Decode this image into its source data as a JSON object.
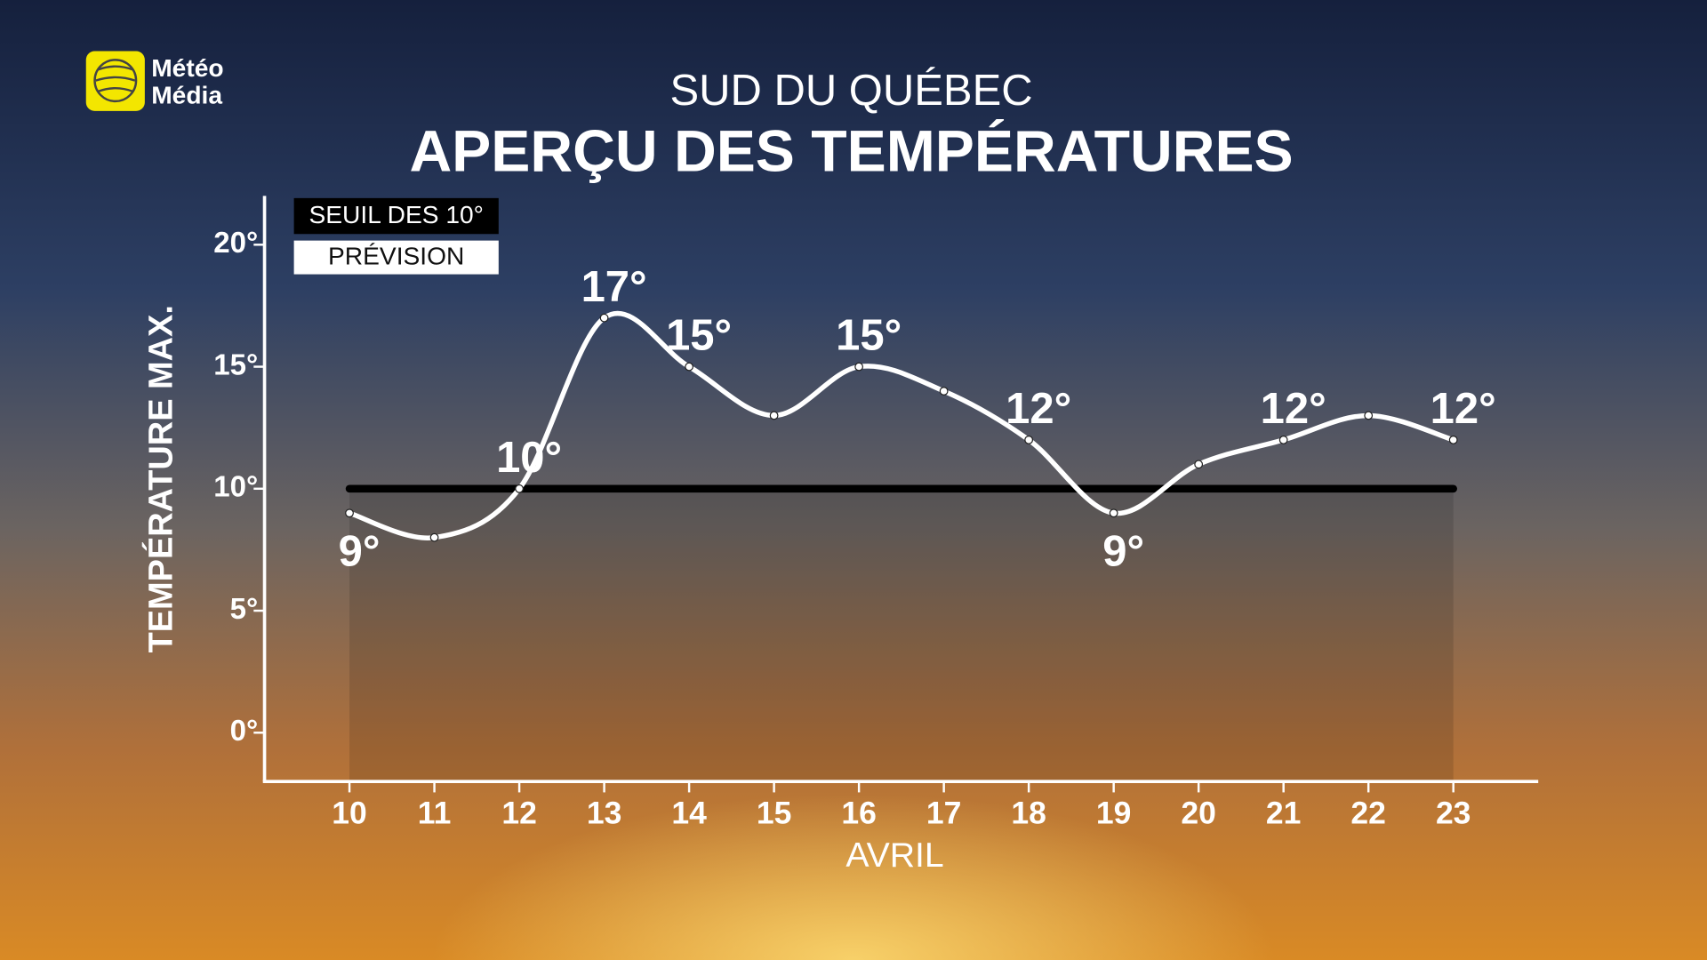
{
  "logo": {
    "line1": "Météo",
    "line2": "Média"
  },
  "chart_data": {
    "type": "line",
    "subtitle": "SUD DU QUÉBEC",
    "title": "APERÇU DES TEMPÉRATURES",
    "y_label": "TEMPÉRATURE MAX.",
    "x_label": "AVRIL",
    "x": [
      10,
      11,
      12,
      13,
      14,
      15,
      16,
      17,
      18,
      19,
      20,
      21,
      22,
      23
    ],
    "series": [
      {
        "name": "PRÉVISION",
        "color": "#ffffff",
        "values": [
          9,
          8,
          10,
          17,
          15,
          13,
          15,
          14,
          12,
          9,
          11,
          12,
          13,
          12
        ],
        "value_labels": [
          "9°",
          null,
          "10°",
          "17°",
          "15°",
          null,
          "15°",
          null,
          "12°",
          "9°",
          null,
          "12°",
          null,
          "12°"
        ]
      }
    ],
    "threshold": {
      "name": "SEUIL DES 10°",
      "value": 10,
      "color": "#000000"
    },
    "xlim": [
      9,
      24
    ],
    "xticks": [
      10,
      11,
      12,
      13,
      14,
      15,
      16,
      17,
      18,
      19,
      20,
      21,
      22,
      23
    ],
    "ylim": [
      -2,
      22
    ],
    "yticks": [
      {
        "value": 0,
        "label": "0°"
      },
      {
        "value": 5,
        "label": "5°"
      },
      {
        "value": 10,
        "label": "10°"
      },
      {
        "value": 15,
        "label": "15°"
      },
      {
        "value": 20,
        "label": "20°"
      }
    ],
    "legend": "upper left"
  }
}
